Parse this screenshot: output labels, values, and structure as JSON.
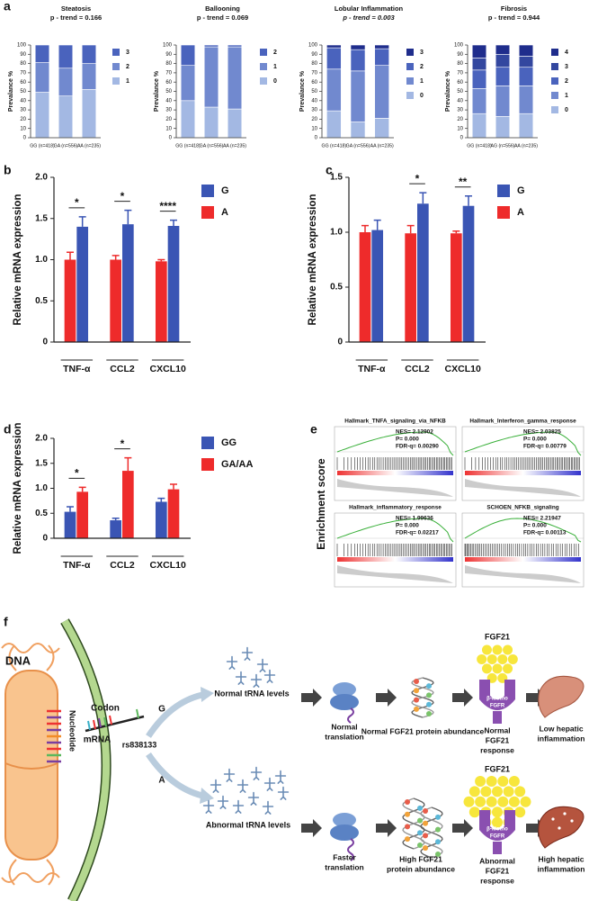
{
  "panel_labels": [
    "a",
    "b",
    "c",
    "d",
    "e",
    "f"
  ],
  "chart_data": [
    {
      "type": "stacked_bar",
      "title": "Steatosis",
      "subtitle": "p - trend = 0.166",
      "ylabel": "Prevalance %",
      "categories": [
        "GG (n=418)",
        "GA (n=556)",
        "AA (n=235)"
      ],
      "ylim": [
        0,
        100
      ],
      "yticks": [
        0,
        10,
        20,
        30,
        40,
        50,
        60,
        70,
        80,
        90,
        100
      ],
      "series": [
        {
          "name": "1",
          "color": "#a3b8e3",
          "values": [
            49,
            45,
            52
          ]
        },
        {
          "name": "2",
          "color": "#7189cf",
          "values": [
            32,
            30,
            28
          ]
        },
        {
          "name": "3",
          "color": "#4a63bd",
          "values": [
            19,
            25,
            20
          ]
        }
      ]
    },
    {
      "type": "stacked_bar",
      "title": "Ballooning",
      "subtitle": "p - trend = 0.069",
      "ylabel": "Prevalance %",
      "categories": [
        "GG (n=418)",
        "GA (n=556)",
        "AA (n=235)"
      ],
      "ylim": [
        0,
        100
      ],
      "yticks": [
        0,
        10,
        20,
        30,
        40,
        50,
        60,
        70,
        80,
        90,
        100
      ],
      "series": [
        {
          "name": "0",
          "color": "#a3b8e3",
          "values": [
            40,
            33,
            31
          ]
        },
        {
          "name": "1",
          "color": "#7189cf",
          "values": [
            38,
            65,
            67
          ]
        },
        {
          "name": "2",
          "color": "#4a63bd",
          "values": [
            22,
            2,
            2
          ]
        }
      ]
    },
    {
      "type": "stacked_bar",
      "title": "Lobular Inflammation",
      "subtitle": "p - trend = 0.003",
      "ylabel": "Prevalance %",
      "categories": [
        "GG (n=418)",
        "GA (n=556)",
        "AA (n=235)"
      ],
      "ylim": [
        0,
        100
      ],
      "yticks": [
        0,
        10,
        20,
        30,
        40,
        50,
        60,
        70,
        80,
        90,
        100
      ],
      "series": [
        {
          "name": "0",
          "color": "#a3b8e3",
          "values": [
            29,
            17,
            21
          ]
        },
        {
          "name": "1",
          "color": "#7189cf",
          "values": [
            45,
            55,
            57
          ]
        },
        {
          "name": "2",
          "color": "#4a63bd",
          "values": [
            23,
            23,
            18
          ]
        },
        {
          "name": "3",
          "color": "#1f2d8c",
          "values": [
            3,
            5,
            4
          ]
        }
      ]
    },
    {
      "type": "stacked_bar",
      "title": "Fibrosis",
      "subtitle": "p - trend = 0.944",
      "ylabel": "Prevalance %",
      "categories": [
        "GG (n=418)",
        "AG (n=556)",
        "AA (n=235)"
      ],
      "ylim": [
        0,
        100
      ],
      "yticks": [
        0,
        10,
        20,
        30,
        40,
        50,
        60,
        70,
        80,
        90,
        100
      ],
      "series": [
        {
          "name": "0",
          "color": "#a3b8e3",
          "values": [
            26,
            23,
            26
          ]
        },
        {
          "name": "1",
          "color": "#7189cf",
          "values": [
            27,
            33,
            30
          ]
        },
        {
          "name": "2",
          "color": "#4a63bd",
          "values": [
            20,
            20,
            20
          ]
        },
        {
          "name": "3",
          "color": "#33479f",
          "values": [
            13,
            14,
            12
          ]
        },
        {
          "name": "4",
          "color": "#1f2d8c",
          "values": [
            14,
            10,
            12
          ]
        }
      ]
    },
    {
      "type": "bar",
      "ylabel": "Relative mRNA expression",
      "categories": [
        "TNF-α",
        "CCL2",
        "CXCL10"
      ],
      "ylim": [
        0,
        2
      ],
      "yticks": [
        0,
        0.5,
        {
          "value": 1,
          "label": "1.0"
        },
        1.5,
        {
          "value": 2,
          "label": "2.0"
        }
      ],
      "legend_reversed": true,
      "series": [
        {
          "name": "A",
          "color": "#ee2b2b",
          "values": [
            1.0,
            1.0,
            0.98
          ],
          "errors": [
            0.09,
            0.05,
            0.02
          ]
        },
        {
          "name": "G",
          "color": "#3a55b4",
          "values": [
            1.4,
            1.43,
            1.41
          ],
          "errors": [
            0.12,
            0.17,
            0.07
          ]
        }
      ],
      "annotations": [
        {
          "text": "*",
          "category": "TNF-α"
        },
        {
          "text": "*",
          "category": "CCL2"
        },
        {
          "text": "****",
          "category": "CXCL10"
        }
      ]
    },
    {
      "type": "bar",
      "ylabel": "Relative mRNA expression",
      "categories": [
        "TNF-α",
        "CCL2",
        "CXCL10"
      ],
      "ylim": [
        0,
        1.5
      ],
      "yticks": [
        0,
        0.5,
        {
          "value": 1,
          "label": "1.0"
        },
        1.5
      ],
      "legend_reversed": true,
      "series": [
        {
          "name": "A",
          "color": "#ee2b2b",
          "values": [
            1.0,
            0.99,
            0.99
          ],
          "errors": [
            0.06,
            0.07,
            0.02
          ]
        },
        {
          "name": "G",
          "color": "#3a55b4",
          "values": [
            1.02,
            1.26,
            1.24
          ],
          "errors": [
            0.09,
            0.1,
            0.09
          ]
        }
      ],
      "annotations": [
        {
          "text": "*",
          "category": "CCL2"
        },
        {
          "text": "**",
          "category": "CXCL10"
        }
      ]
    },
    {
      "type": "bar",
      "ylabel": "Relative mRNA expression",
      "categories": [
        "TNF-α",
        "CCL2",
        "CXCL10"
      ],
      "ylim": [
        0,
        2
      ],
      "yticks": [
        0,
        0.5,
        {
          "value": 1,
          "label": "1.0"
        },
        1.5,
        {
          "value": 2,
          "label": "2.0"
        }
      ],
      "legend_reversed": false,
      "series": [
        {
          "name": "GG",
          "color": "#3a55b4",
          "values": [
            0.53,
            0.36,
            0.73
          ],
          "errors": [
            0.1,
            0.04,
            0.07
          ]
        },
        {
          "name": "GA/AA",
          "color": "#ee2b2b",
          "values": [
            0.93,
            1.35,
            0.98
          ],
          "errors": [
            0.09,
            0.26,
            0.1
          ]
        }
      ],
      "annotations": [
        {
          "text": "*",
          "category": "TNF-α"
        },
        {
          "text": "*",
          "category": "CCL2"
        }
      ]
    }
  ],
  "gsea": {
    "ylabel": "Enrichment score",
    "plots": [
      {
        "title": "Hallmark_TNFA_signaling_via_NFKB",
        "stats": [
          "NES= 2.12902",
          "P= 0.000",
          "FDR-q= 0.00290"
        ]
      },
      {
        "title": "Hallmark_Interferon_gamma_response",
        "stats": [
          "NES= 2.03825",
          "P= 0.000",
          "FDR-q= 0.00779"
        ]
      },
      {
        "title": "Hallmark_inflammatory_response",
        "stats": [
          "NES= 1.99636",
          "P= 0.000",
          "FDR-q= 0.02217"
        ]
      },
      {
        "title": "SCHOEN_NFKB_signaling",
        "stats": [
          "NES= 2.21947",
          "P= 0.000",
          "FDR-q= 0.00113"
        ]
      }
    ]
  },
  "diagram": {
    "dna": "DNA",
    "nucleotide": "Nucleotide",
    "codon": "Codon",
    "mrna": "mRNA",
    "snp": "rs838133",
    "allele_g": "G",
    "allele_a": "A",
    "normal_trna": "Normal tRNA levels",
    "abnormal_trna": "Abnormal tRNA levels",
    "normal_translation": [
      "Normal",
      "translation"
    ],
    "faster_translation": [
      "Faster",
      "translation"
    ],
    "normal_abundance": [
      "Normal FGF21 protein abundance"
    ],
    "high_abundance": [
      "High FGF21",
      "protein abundance"
    ],
    "fgf21_top": "FGF21",
    "fgf21_bottom": "FGF21",
    "receptor_top": [
      "β-klotho",
      "FGFR"
    ],
    "receptor_bottom": [
      "β-klotho",
      "FGFR"
    ],
    "normal_response": [
      "Normal",
      "FGF21",
      "response"
    ],
    "abnormal_response": [
      "Abnormal",
      "FGF21",
      "response"
    ],
    "low_inflammation": [
      "Low hepatic",
      "inflammation"
    ],
    "high_inflammation": [
      "High hepatic",
      "inflammation"
    ]
  }
}
